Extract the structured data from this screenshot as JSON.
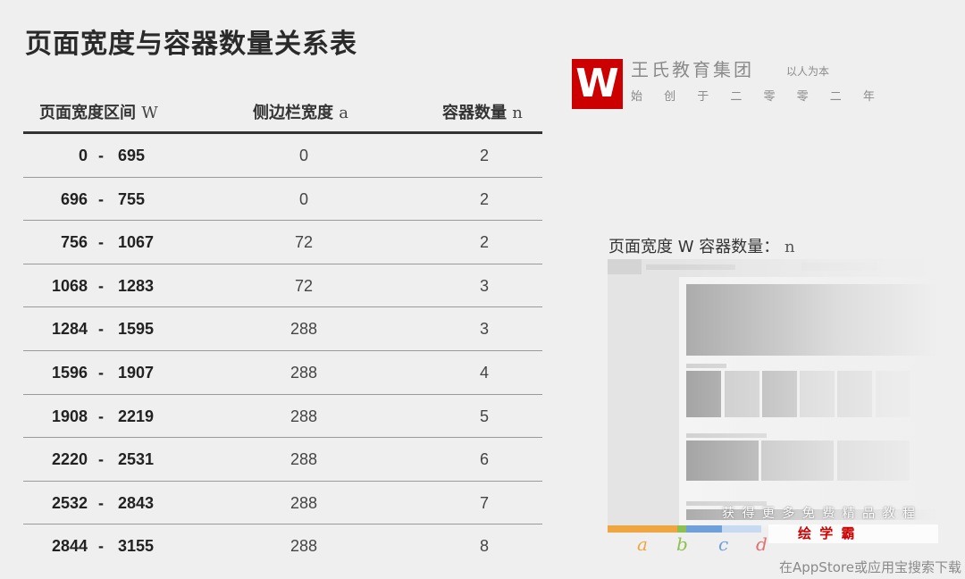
{
  "title": "页面宽度与容器数量关系表",
  "table": {
    "headers": [
      {
        "label": "页面宽度区间",
        "var": "W"
      },
      {
        "label": "侧边栏宽度",
        "var": "a"
      },
      {
        "label": "容器数量",
        "var": "n"
      }
    ],
    "range_separator": "-",
    "rows": [
      {
        "from": "0",
        "to": "695",
        "a": "0",
        "n": "2"
      },
      {
        "from": "696",
        "to": "755",
        "a": "0",
        "n": "2"
      },
      {
        "from": "756",
        "to": "1067",
        "a": "72",
        "n": "2"
      },
      {
        "from": "1068",
        "to": "1283",
        "a": "72",
        "n": "3"
      },
      {
        "from": "1284",
        "to": "1595",
        "a": "288",
        "n": "3"
      },
      {
        "from": "1596",
        "to": "1907",
        "a": "288",
        "n": "4"
      },
      {
        "from": "1908",
        "to": "2219",
        "a": "288",
        "n": "5"
      },
      {
        "from": "2220",
        "to": "2531",
        "a": "288",
        "n": "6"
      },
      {
        "from": "2532",
        "to": "2843",
        "a": "288",
        "n": "7"
      },
      {
        "from": "2844",
        "to": "3155",
        "a": "288",
        "n": "8"
      }
    ]
  },
  "diagram": {
    "title": "页面宽度 W 容器数量：",
    "title_var": "n",
    "legend": [
      {
        "label": "a",
        "color": "#f0a640"
      },
      {
        "label": "b",
        "color": "#8cc152"
      },
      {
        "label": "c",
        "color": "#6fa0dc"
      },
      {
        "label": "d",
        "color": "#e07070"
      }
    ]
  },
  "watermark": {
    "logo": "W",
    "org": "王氏教育集团",
    "motto": "以人为本",
    "since": "始 创 于 二 零 零 二 年",
    "promo": "获 得 更 多 免 费 精 品 教 程",
    "brand": "绘 学 霸",
    "download": "在AppStore或应用宝搜索下载"
  }
}
